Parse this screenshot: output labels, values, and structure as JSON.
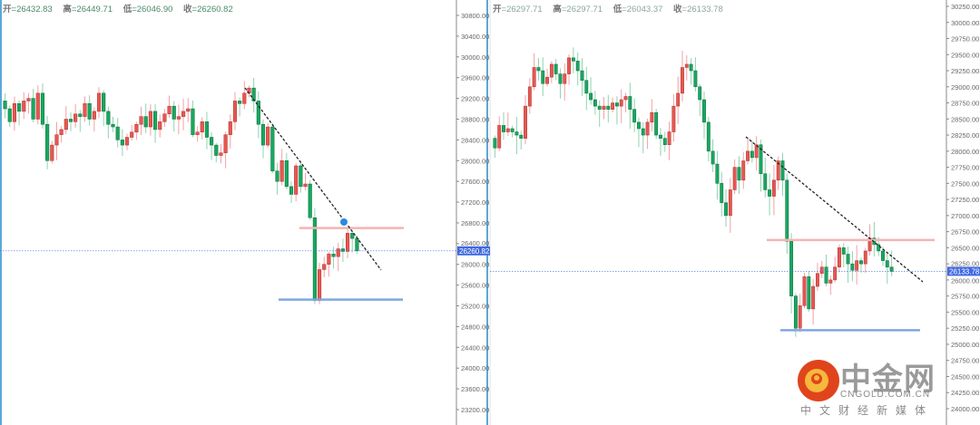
{
  "left_panel": {
    "ohlc": {
      "open_label": "开",
      "open": "26432.83",
      "high_label": "高",
      "high": "26449.71",
      "low_label": "低",
      "low": "26046.90",
      "close_label": "收",
      "close": "26260.82"
    },
    "current_price_label": "26260.82"
  },
  "right_panel": {
    "ohlc": {
      "open_label": "开",
      "open": "26297.71",
      "high_label": "高",
      "high": "26297.71",
      "low_label": "低",
      "low": "26043.37",
      "close_label": "收",
      "close": "26133.78"
    },
    "current_price_label": "26133.78"
  },
  "colors": {
    "up": "#e8574f",
    "down": "#17a85f",
    "up_wick": "#f4a0a6",
    "down_wick": "#8fd4b0",
    "resistance": "#f5b3b3",
    "support": "#7fa8e0",
    "price_line": "#4169e1",
    "axis_frame": "#5aa9d6"
  },
  "watermark": {
    "name": "中金网",
    "domain": "CNGOLD.COM.CN",
    "tagline": "中文财经新媒体"
  },
  "chart_data": [
    {
      "type": "candlestick",
      "ylim": [
        23000,
        31000
      ],
      "y_ticks": [
        "30800.00",
        "30400.00",
        "30000.00",
        "29600.00",
        "29200.00",
        "28800.00",
        "28400.00",
        "28000.00",
        "27600.00",
        "27200.00",
        "26800.00",
        "26400.00",
        "26000.00",
        "25600.00",
        "25200.00",
        "24800.00",
        "24400.00",
        "24000.00",
        "23600.00",
        "23200.00"
      ],
      "closes": [
        29000,
        28750,
        29100,
        28950,
        29150,
        29200,
        28800,
        29300,
        28700,
        28000,
        28300,
        28500,
        28600,
        28800,
        28750,
        28900,
        28850,
        29100,
        28800,
        28950,
        29300,
        28950,
        28700,
        28650,
        28400,
        28300,
        28450,
        28550,
        28700,
        28850,
        28650,
        28950,
        28600,
        28750,
        28900,
        29050,
        28800,
        28850,
        28950,
        29000,
        28500,
        28550,
        28750,
        28450,
        28300,
        28100,
        28150,
        28500,
        28750,
        29150,
        29100,
        29300,
        29400,
        29150,
        28700,
        28300,
        28650,
        27800,
        27600,
        28000,
        27500,
        27350,
        27900,
        27500,
        27550,
        26900,
        25300,
        25900,
        26000,
        26200,
        26150,
        26300,
        26250,
        26600,
        26500,
        26260
      ],
      "last_close": 26260.82,
      "trendline": [
        [
          29400,
          "start"
        ],
        [
          25800,
          "end"
        ]
      ],
      "resistance": 26700,
      "support": 25320
    },
    {
      "type": "candlestick",
      "ylim": [
        23900,
        30350
      ],
      "y_ticks": [
        "30250.00",
        "30000.00",
        "29750.00",
        "29500.00",
        "29250.00",
        "29000.00",
        "28750.00",
        "28500.00",
        "28250.00",
        "28000.00",
        "27750.00",
        "27500.00",
        "27250.00",
        "27000.00",
        "26750.00",
        "26500.00",
        "26250.00",
        "26000.00",
        "25750.00",
        "25500.00",
        "25250.00",
        "25000.00",
        "24750.00",
        "24500.00",
        "24250.00",
        "24000.00"
      ],
      "closes": [
        28050,
        28400,
        28300,
        28350,
        28300,
        28250,
        28200,
        28700,
        29000,
        29300,
        29250,
        29050,
        29150,
        29350,
        29200,
        29050,
        29200,
        29450,
        29400,
        29250,
        29100,
        28900,
        28800,
        28700,
        28650,
        28700,
        28650,
        28750,
        28700,
        28800,
        28850,
        28650,
        28450,
        28350,
        28250,
        28450,
        28600,
        28250,
        28200,
        28100,
        28300,
        28700,
        28900,
        29300,
        29350,
        29250,
        29000,
        28800,
        28450,
        28000,
        27800,
        27500,
        27200,
        27000,
        27400,
        27750,
        27550,
        27850,
        28000,
        27900,
        28100,
        27650,
        27400,
        27300,
        27550,
        27850,
        27550,
        26600,
        25750,
        25250,
        25600,
        26050,
        25550,
        25900,
        26100,
        26200,
        25950,
        26000,
        26200,
        26500,
        26400,
        26250,
        26150,
        26300,
        26250,
        26450,
        26650,
        26550,
        26450,
        26300,
        26200,
        26133
      ],
      "last_close": 26133.78,
      "resistance": 26620,
      "support": 25220
    }
  ]
}
